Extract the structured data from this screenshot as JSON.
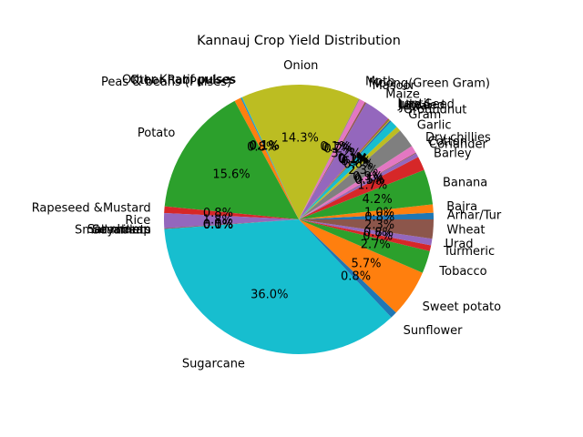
{
  "chart_data": {
    "type": "pie",
    "title": "Kannauj Crop Yield Distribution",
    "start_angle_deg": 0,
    "direction": "counterclockwise",
    "autopct_format": "percent_one_decimal",
    "slices": [
      {
        "label": "Arhar/Tur",
        "value": 0.8,
        "pct_text": "0.8%",
        "color": "#1f77b4"
      },
      {
        "label": "Bajra",
        "value": 1.0,
        "pct_text": "1.0%",
        "color": "#ff7f0e"
      },
      {
        "label": "Banana",
        "value": 4.2,
        "pct_text": "4.2%",
        "color": "#2ca02c"
      },
      {
        "label": "Barley",
        "value": 1.7,
        "pct_text": "1.7%",
        "color": "#d62728"
      },
      {
        "label": "Coriander",
        "value": 0.5,
        "pct_text": "0.5%",
        "color": "#9467bd"
      },
      {
        "label": "Cotton",
        "value": 0.1,
        "pct_text": "0.1%",
        "color": "#8c564b"
      },
      {
        "label": "Dry chillies",
        "value": 0.9,
        "pct_text": "0.9%",
        "color": "#e377c2"
      },
      {
        "label": "Garlic",
        "value": 2.3,
        "pct_text": "2.3%",
        "color": "#7f7f7f"
      },
      {
        "label": "Gram",
        "value": 0.6,
        "pct_text": "0.6%",
        "color": "#bcbd22"
      },
      {
        "label": "Groundnut",
        "value": 0.9,
        "pct_text": "0.9%",
        "color": "#17becf"
      },
      {
        "label": "Jowar",
        "value": 0.2,
        "pct_text": "0.2%",
        "color": "#1f77b4"
      },
      {
        "label": "Linseed",
        "value": 0.1,
        "pct_text": "0.1%",
        "color": "#ff7f0e"
      },
      {
        "label": "Jute Seed",
        "value": 0.1,
        "pct_text": "0.1%",
        "color": "#2ca02c"
      },
      {
        "label": "Lentil",
        "value": 0.1,
        "pct_text": "0.1%",
        "color": "#d62728"
      },
      {
        "label": "Maize",
        "value": 3.2,
        "pct_text": "3.2%",
        "color": "#9467bd"
      },
      {
        "label": "Masoor",
        "value": 0.2,
        "pct_text": "0.2%",
        "color": "#8c564b"
      },
      {
        "label": "Moong(Green Gram)",
        "value": 0.7,
        "pct_text": "0.7%",
        "color": "#e377c2"
      },
      {
        "label": "Moth",
        "value": 0.1,
        "pct_text": "0.1%",
        "color": "#7f7f7f"
      },
      {
        "label": "Onion",
        "value": 14.3,
        "pct_text": "14.3%",
        "color": "#bcbd22"
      },
      {
        "label": "Other Kharif pulses",
        "value": 0.1,
        "pct_text": "0.1%",
        "color": "#17becf"
      },
      {
        "label": "Other Rabi pulses",
        "value": 0.1,
        "pct_text": "0.1%",
        "color": "#1f77b4"
      },
      {
        "label": "Peas & beans (Pulses)",
        "value": 0.8,
        "pct_text": "0.8%",
        "color": "#ff7f0e"
      },
      {
        "label": "Potato",
        "value": 15.6,
        "pct_text": "15.6%",
        "color": "#2ca02c"
      },
      {
        "label": "Rapeseed &Mustard",
        "value": 0.8,
        "pct_text": "0.8%",
        "color": "#d62728"
      },
      {
        "label": "Rice",
        "value": 1.8,
        "pct_text": "1.8%",
        "color": "#9467bd"
      },
      {
        "label": "Sannhamp",
        "value": 0.1,
        "pct_text": "0.1%",
        "color": "#8c564b"
      },
      {
        "label": "Sesamum",
        "value": 0.0,
        "pct_text": "0.0%",
        "color": "#e377c2"
      },
      {
        "label": "Small millets",
        "value": 0.0,
        "pct_text": "0.0%",
        "color": "#7f7f7f"
      },
      {
        "label": "Soyabean",
        "value": 0.0,
        "pct_text": "0.0%",
        "color": "#bcbd22"
      },
      {
        "label": "Sugarcane",
        "value": 36.0,
        "pct_text": "36.0%",
        "color": "#17becf"
      },
      {
        "label": "Sunflower",
        "value": 0.8,
        "pct_text": "0.8%",
        "color": "#1f77b4"
      },
      {
        "label": "Sweet potato",
        "value": 5.7,
        "pct_text": "5.7%",
        "color": "#ff7f0e"
      },
      {
        "label": "Tobacco",
        "value": 2.7,
        "pct_text": "2.7%",
        "color": "#2ca02c"
      },
      {
        "label": "Turmeric",
        "value": 0.7,
        "pct_text": "0.7%",
        "color": "#d62728"
      },
      {
        "label": "Urad",
        "value": 0.8,
        "pct_text": "0.8%",
        "color": "#9467bd"
      },
      {
        "label": "Wheat",
        "value": 2.3,
        "pct_text": "2.3%",
        "color": "#8c564b"
      }
    ]
  }
}
